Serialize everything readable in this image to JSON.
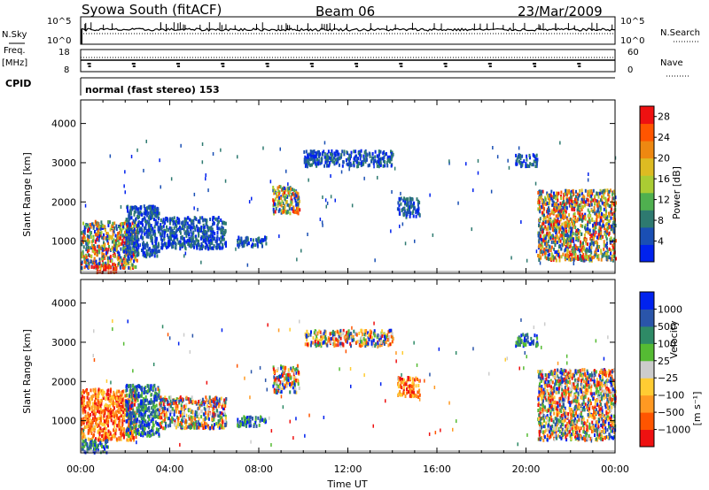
{
  "header": {
    "station": "Syowa South (fitACF)",
    "beam": "Beam 06",
    "date": "23/Mar/2009"
  },
  "panels": {
    "nsky_label": "N.Sky",
    "nsky_top": "10^5",
    "nsky_bottom": "10^0",
    "nsearch_label": "N.Search",
    "nsearch_top": "10^5",
    "nsearch_bottom": "10^0",
    "freq_label": "Freq.",
    "freq_unit": "[MHz]",
    "freq_top": "18",
    "freq_bottom": "8",
    "nave_label": "Nave",
    "nave_top": "60",
    "nave_bottom": "0",
    "cpid_label": "CPID",
    "cpid_value": "normal (fast stereo) 153"
  },
  "axes": {
    "ylabel": "Slant Range [km]",
    "xlabel": "Time UT"
  },
  "colors": {
    "power": [
      "#0022ee",
      "#1a4fb4",
      "#2e7a70",
      "#4fb04f",
      "#aacc33",
      "#ddbb22",
      "#ee8811",
      "#ff5500",
      "#ee1111"
    ],
    "velocity": [
      "#ee1111",
      "#ff5500",
      "#ff9922",
      "#ffcc33",
      "#cccccc",
      "#55bb33",
      "#2e8a66",
      "#2a55aa",
      "#0022ee"
    ],
    "trace": "#000000"
  },
  "chart_data": [
    {
      "type": "heatmap",
      "name": "power",
      "title": "Syowa South (fitACF)",
      "xlabel": "Time UT",
      "ylabel": "Slant Range [km]",
      "xlim": [
        0,
        24
      ],
      "ylim": [
        180,
        4600
      ],
      "x_ticks": [
        "00:00",
        "04:00",
        "08:00",
        "12:00",
        "16:00",
        "20:00",
        "00:00"
      ],
      "y_ticks": [
        1000,
        2000,
        3000,
        4000
      ],
      "colorbar": {
        "label": "Power [dB]",
        "ticks": [
          4,
          8,
          12,
          16,
          20,
          24,
          28
        ],
        "range": [
          0,
          30
        ]
      },
      "regions": [
        {
          "t0": 0.0,
          "t1": 2.5,
          "r0": 300,
          "r1": 1500,
          "level": "mixed"
        },
        {
          "t0": 0.6,
          "t1": 1.6,
          "r0": 200,
          "r1": 380,
          "level": "high"
        },
        {
          "t0": 2.0,
          "t1": 3.5,
          "r0": 600,
          "r1": 1900,
          "level": "low"
        },
        {
          "t0": 3.5,
          "t1": 6.5,
          "r0": 800,
          "r1": 1600,
          "level": "low"
        },
        {
          "t0": 7.0,
          "t1": 8.3,
          "r0": 850,
          "r1": 1100,
          "level": "low"
        },
        {
          "t0": 8.6,
          "t1": 9.8,
          "r0": 1700,
          "r1": 2400,
          "level": "mixed"
        },
        {
          "t0": 10.0,
          "t1": 14.0,
          "r0": 2900,
          "r1": 3300,
          "level": "low"
        },
        {
          "t0": 14.2,
          "t1": 15.2,
          "r0": 1600,
          "r1": 2100,
          "level": "low"
        },
        {
          "t0": 19.5,
          "t1": 20.5,
          "r0": 2900,
          "r1": 3200,
          "level": "low"
        },
        {
          "t0": 20.5,
          "t1": 24.0,
          "r0": 500,
          "r1": 2300,
          "level": "mixed"
        }
      ]
    },
    {
      "type": "heatmap",
      "name": "velocity",
      "xlabel": "Time UT",
      "ylabel": "Slant Range [km]",
      "xlim": [
        0,
        24
      ],
      "ylim": [
        180,
        4600
      ],
      "x_ticks": [
        "00:00",
        "04:00",
        "08:00",
        "12:00",
        "16:00",
        "20:00",
        "00:00"
      ],
      "y_ticks": [
        1000,
        2000,
        3000,
        4000
      ],
      "colorbar": {
        "label": "Velocity",
        "unit": "[m s⁻¹]",
        "ticks": [
          "1000",
          "500",
          "100",
          "25",
          "−25",
          "−100",
          "−500",
          "−1000"
        ]
      },
      "regions": [
        {
          "t0": 0.0,
          "t1": 2.5,
          "r0": 500,
          "r1": 1800,
          "level": "negative"
        },
        {
          "t0": 0.0,
          "t1": 1.2,
          "r0": 180,
          "r1": 500,
          "level": "positive"
        },
        {
          "t0": 2.0,
          "t1": 3.5,
          "r0": 600,
          "r1": 1900,
          "level": "positive"
        },
        {
          "t0": 3.5,
          "t1": 6.5,
          "r0": 800,
          "r1": 1600,
          "level": "mixed"
        },
        {
          "t0": 7.0,
          "t1": 8.3,
          "r0": 850,
          "r1": 1100,
          "level": "positive"
        },
        {
          "t0": 8.6,
          "t1": 9.8,
          "r0": 1700,
          "r1": 2400,
          "level": "mixed"
        },
        {
          "t0": 10.0,
          "t1": 14.0,
          "r0": 2900,
          "r1": 3300,
          "level": "mixed"
        },
        {
          "t0": 14.2,
          "t1": 15.2,
          "r0": 1600,
          "r1": 2100,
          "level": "negative"
        },
        {
          "t0": 19.5,
          "t1": 20.5,
          "r0": 2900,
          "r1": 3200,
          "level": "positive"
        },
        {
          "t0": 20.5,
          "t1": 24.0,
          "r0": 500,
          "r1": 2300,
          "level": "mixed"
        }
      ]
    }
  ]
}
